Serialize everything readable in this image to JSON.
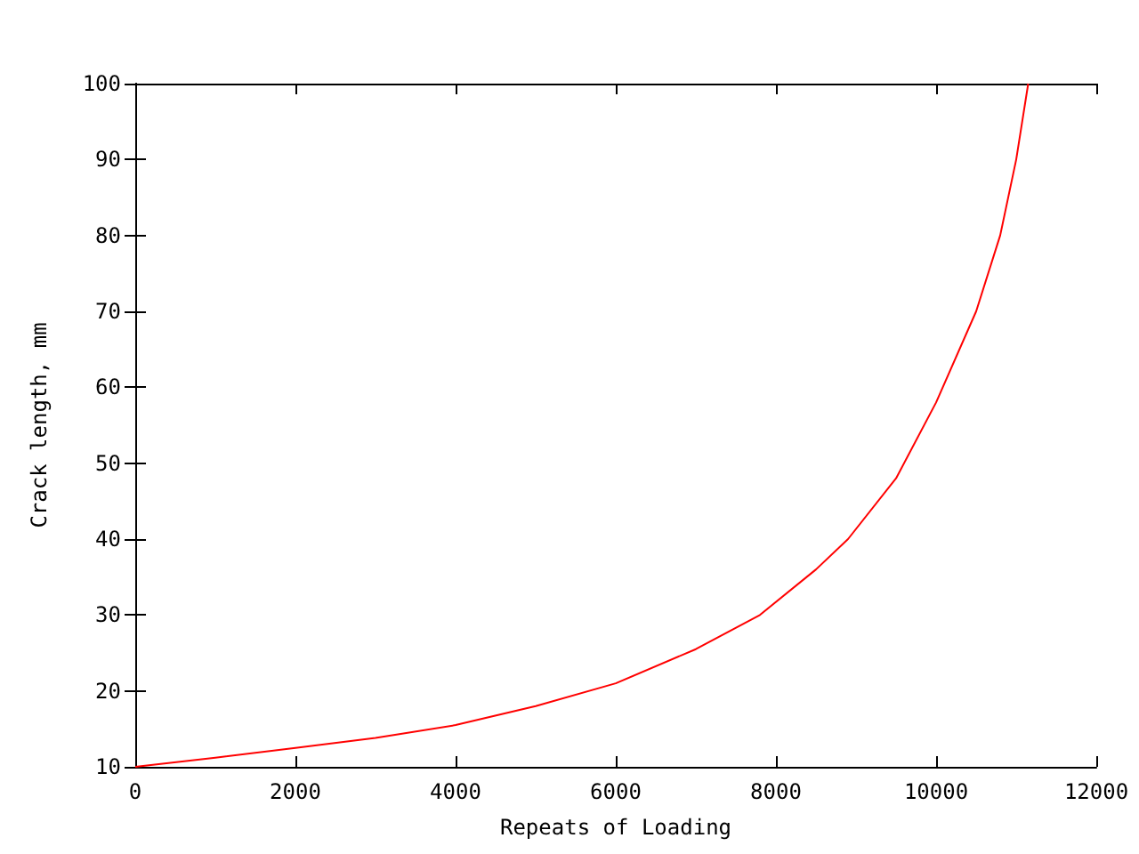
{
  "chart_data": {
    "type": "line",
    "xlabel": "Repeats of Loading",
    "ylabel": "Crack length, mm",
    "x": [
      0,
      1000,
      2000,
      3000,
      4000,
      5000,
      6000,
      7000,
      7800,
      8500,
      8900,
      9500,
      10000,
      10500,
      10800,
      11000,
      11150
    ],
    "series": [
      {
        "color": "#ff0000",
        "values": [
          10,
          11.2,
          12.5,
          13.8,
          15.5,
          18,
          21,
          25.5,
          30,
          36,
          40,
          48,
          58,
          70,
          80,
          90,
          100
        ]
      }
    ],
    "xlim": [
      0,
      12000
    ],
    "xticks": [
      0,
      2000,
      4000,
      6000,
      8000,
      10000,
      12000
    ],
    "ylim": [
      10,
      100
    ],
    "yticks": [
      10,
      20,
      30,
      40,
      50,
      60,
      70,
      80,
      90,
      100
    ],
    "grid": false,
    "marker": "none",
    "line_style": "solid"
  }
}
